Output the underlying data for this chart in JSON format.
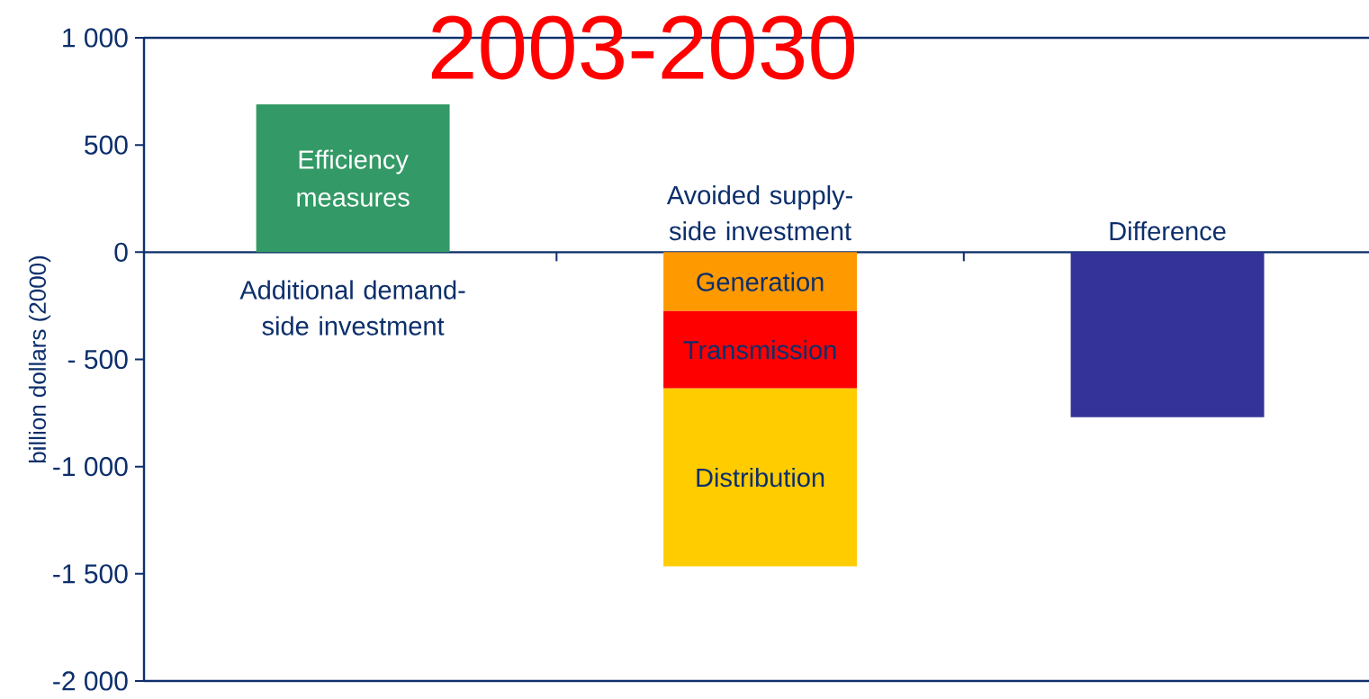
{
  "chart_data": {
    "type": "bar",
    "stacked": true,
    "title": "2003-2030",
    "ylabel": "billion dollars (2000)",
    "categories": [
      "Additional demand-side investment",
      "Avoided supply-side investment",
      "Difference"
    ],
    "series": [
      {
        "name": "Efficiency measures",
        "color": "#339966",
        "values": [
          690,
          null,
          null
        ]
      },
      {
        "name": "Generation",
        "color": "#ff9900",
        "values": [
          null,
          -275,
          null
        ]
      },
      {
        "name": "Transmission",
        "color": "#ff0000",
        "values": [
          null,
          -360,
          null
        ]
      },
      {
        "name": "Distribution",
        "color": "#ffcc00",
        "values": [
          null,
          -830,
          null
        ]
      },
      {
        "color": "#333399",
        "values": [
          null,
          null,
          -770
        ]
      }
    ],
    "ylim": [
      -2000,
      1000
    ],
    "yticks": [
      {
        "value": 1000,
        "label": "1 000"
      },
      500,
      0,
      {
        "value": -500,
        "label": "- 500"
      },
      {
        "value": -1000,
        "label": "-1 000"
      },
      {
        "value": -1500,
        "label": "-1 500"
      },
      {
        "value": -2000,
        "label": "-2 000"
      }
    ]
  }
}
